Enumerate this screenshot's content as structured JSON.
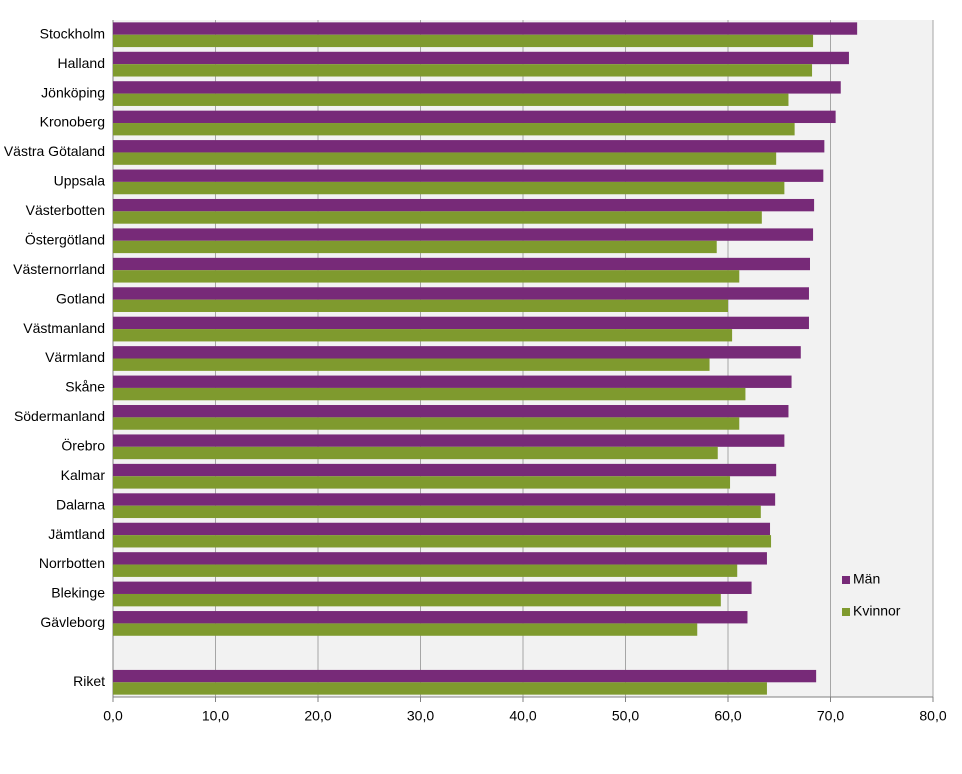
{
  "chart_data": {
    "type": "bar",
    "orientation": "horizontal",
    "categories": [
      "Stockholm",
      "Halland",
      "Jönköping",
      "Kronoberg",
      "Västra Götaland",
      "Uppsala",
      "Västerbotten",
      "Östergötland",
      "Västernorrland",
      "Gotland",
      "Västmanland",
      "Värmland",
      "Skåne",
      "Södermanland",
      "Örebro",
      "Kalmar",
      "Dalarna",
      "Jämtland",
      "Norrbotten",
      "Blekinge",
      "Gävleborg",
      null,
      "Riket"
    ],
    "series": [
      {
        "name": "Män",
        "color": "#772a78",
        "values": [
          72.6,
          71.8,
          71.0,
          70.5,
          69.4,
          69.3,
          68.4,
          68.3,
          68.0,
          67.9,
          67.9,
          67.1,
          66.2,
          65.9,
          65.5,
          64.7,
          64.6,
          64.1,
          63.8,
          62.3,
          61.9,
          null,
          68.6
        ]
      },
      {
        "name": "Kvinnor",
        "color": "#7f9a2e",
        "values": [
          68.3,
          68.2,
          65.9,
          66.5,
          64.7,
          65.5,
          63.3,
          58.9,
          61.1,
          60.0,
          60.4,
          58.2,
          61.7,
          61.1,
          59.0,
          60.2,
          63.2,
          64.2,
          60.9,
          59.3,
          57.0,
          null,
          63.8
        ]
      }
    ],
    "xlim": [
      0,
      80
    ],
    "xticks": [
      {
        "value": 0,
        "label": "0,0"
      },
      {
        "value": 10,
        "label": "10,0"
      },
      {
        "value": 20,
        "label": "20,0"
      },
      {
        "value": 30,
        "label": "30,0"
      },
      {
        "value": 40,
        "label": "40,0"
      },
      {
        "value": 50,
        "label": "50,0"
      },
      {
        "value": 60,
        "label": "60,0"
      },
      {
        "value": 70,
        "label": "70,0"
      },
      {
        "value": 80,
        "label": "80,0"
      }
    ],
    "grid": true,
    "legend": "right"
  }
}
